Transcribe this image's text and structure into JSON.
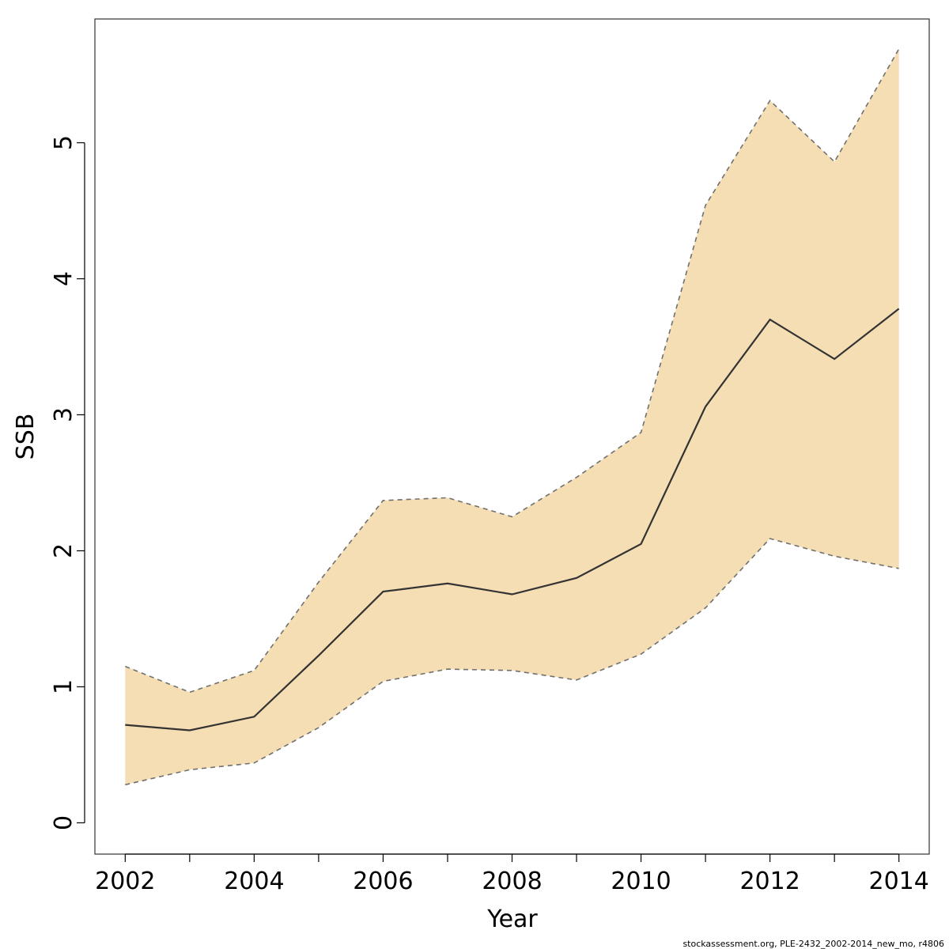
{
  "chart_data": {
    "type": "area",
    "title": "",
    "xlabel": "Year",
    "ylabel": "SSB",
    "xlim": [
      2001.53,
      2014.47
    ],
    "ylim": [
      -0.23,
      5.91
    ],
    "x_ticks": [
      2002,
      2004,
      2006,
      2008,
      2010,
      2012,
      2014
    ],
    "y_ticks": [
      0,
      1,
      2,
      3,
      4,
      5
    ],
    "grid": false,
    "legend": "none",
    "x": [
      2002,
      2003,
      2004,
      2005,
      2006,
      2007,
      2008,
      2009,
      2010,
      2011,
      2012,
      2013,
      2014
    ],
    "series": [
      {
        "role": "estimate",
        "values": [
          0.72,
          0.68,
          0.78,
          1.23,
          1.7,
          1.76,
          1.68,
          1.8,
          2.05,
          3.06,
          3.7,
          3.41,
          3.78
        ]
      },
      {
        "role": "upper",
        "values": [
          1.15,
          0.96,
          1.12,
          1.77,
          2.37,
          2.39,
          2.25,
          2.54,
          2.87,
          4.54,
          5.31,
          4.86,
          5.69
        ]
      },
      {
        "role": "lower",
        "values": [
          0.28,
          0.39,
          0.44,
          0.7,
          1.04,
          1.13,
          1.12,
          1.05,
          1.24,
          1.58,
          2.09,
          1.96,
          1.87
        ]
      }
    ],
    "colors": {
      "band_fill": "#f5deb3",
      "estimate_line": "#333333",
      "bound_line": "#707070",
      "axis": "#000000"
    }
  },
  "footer": {
    "text": "stockassessment.org, PLE-2432_2002-2014_new_mo, r4806"
  }
}
